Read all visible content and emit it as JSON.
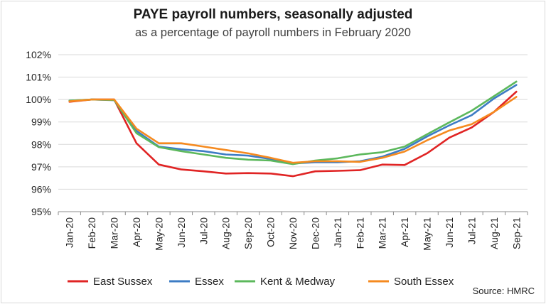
{
  "chart_data": {
    "type": "line",
    "title": "PAYE payroll numbers, seasonally adjusted",
    "subtitle": "as a percentage of payroll numbers in February 2020",
    "source": "Source: HMRC",
    "categories": [
      "Jan-20",
      "Feb-20",
      "Mar-20",
      "Apr-20",
      "May-20",
      "Jun-20",
      "Jul-20",
      "Aug-20",
      "Sep-20",
      "Oct-20",
      "Nov-20",
      "Dec-20",
      "Jan-21",
      "Feb-21",
      "Mar-21",
      "Apr-21",
      "May-21",
      "Jun-21",
      "Jul-21",
      "Aug-21",
      "Sep-21"
    ],
    "ylim": [
      95,
      102
    ],
    "yticks": [
      95,
      96,
      97,
      98,
      99,
      100,
      101,
      102
    ],
    "ytick_labels": [
      "95%",
      "96%",
      "97%",
      "98%",
      "99%",
      "100%",
      "101%",
      "102%"
    ],
    "grid": true,
    "legend_position": "bottom",
    "series": [
      {
        "name": "East Sussex",
        "color": "#e02424",
        "values": [
          99.9,
          100.0,
          100.0,
          98.05,
          97.1,
          96.88,
          96.8,
          96.7,
          96.72,
          96.7,
          96.58,
          96.8,
          96.82,
          96.85,
          97.1,
          97.08,
          97.6,
          98.3,
          98.75,
          99.45,
          100.35
        ]
      },
      {
        "name": "Essex",
        "color": "#3d7cc4",
        "values": [
          99.95,
          100.0,
          99.97,
          98.6,
          97.9,
          97.78,
          97.7,
          97.55,
          97.5,
          97.35,
          97.15,
          97.2,
          97.2,
          97.25,
          97.45,
          97.8,
          98.35,
          98.85,
          99.3,
          100.05,
          100.65
        ]
      },
      {
        "name": "Kent & Medway",
        "color": "#5cb85c",
        "values": [
          99.95,
          100.0,
          99.98,
          98.5,
          97.88,
          97.7,
          97.55,
          97.4,
          97.32,
          97.28,
          97.12,
          97.28,
          97.38,
          97.55,
          97.65,
          97.9,
          98.45,
          98.98,
          99.5,
          100.15,
          100.8
        ]
      },
      {
        "name": "South Essex",
        "color": "#f58a1f",
        "values": [
          99.92,
          100.0,
          100.0,
          98.7,
          98.05,
          98.05,
          97.9,
          97.75,
          97.6,
          97.4,
          97.18,
          97.25,
          97.25,
          97.22,
          97.4,
          97.68,
          98.18,
          98.62,
          98.9,
          99.45,
          100.12
        ]
      }
    ]
  }
}
